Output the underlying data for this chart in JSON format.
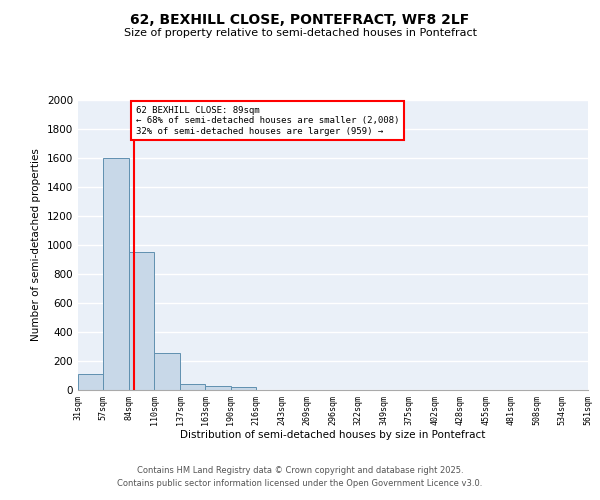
{
  "title_line1": "62, BEXHILL CLOSE, PONTEFRACT, WF8 2LF",
  "title_line2": "Size of property relative to semi-detached houses in Pontefract",
  "xlabel": "Distribution of semi-detached houses by size in Pontefract",
  "ylabel": "Number of semi-detached properties",
  "bar_color": "#c8d8e8",
  "bar_edge_color": "#6090b0",
  "background_color": "#eaf0f8",
  "grid_color": "#ffffff",
  "vline_x": 89,
  "vline_color": "red",
  "annotation_title": "62 BEXHILL CLOSE: 89sqm",
  "annotation_line1": "← 68% of semi-detached houses are smaller (2,008)",
  "annotation_line2": "32% of semi-detached houses are larger (959) →",
  "annotation_box_color": "white",
  "annotation_box_edge": "red",
  "bin_edges": [
    31,
    57,
    84,
    110,
    137,
    163,
    190,
    216,
    243,
    269,
    296,
    322,
    349,
    375,
    402,
    428,
    455,
    481,
    508,
    534,
    561
  ],
  "bar_heights": [
    110,
    1600,
    950,
    255,
    40,
    30,
    18,
    0,
    0,
    0,
    0,
    0,
    0,
    0,
    0,
    0,
    0,
    0,
    0,
    0
  ],
  "ylim": [
    0,
    2000
  ],
  "yticks": [
    0,
    200,
    400,
    600,
    800,
    1000,
    1200,
    1400,
    1600,
    1800,
    2000
  ],
  "footnote_line1": "Contains HM Land Registry data © Crown copyright and database right 2025.",
  "footnote_line2": "Contains public sector information licensed under the Open Government Licence v3.0."
}
